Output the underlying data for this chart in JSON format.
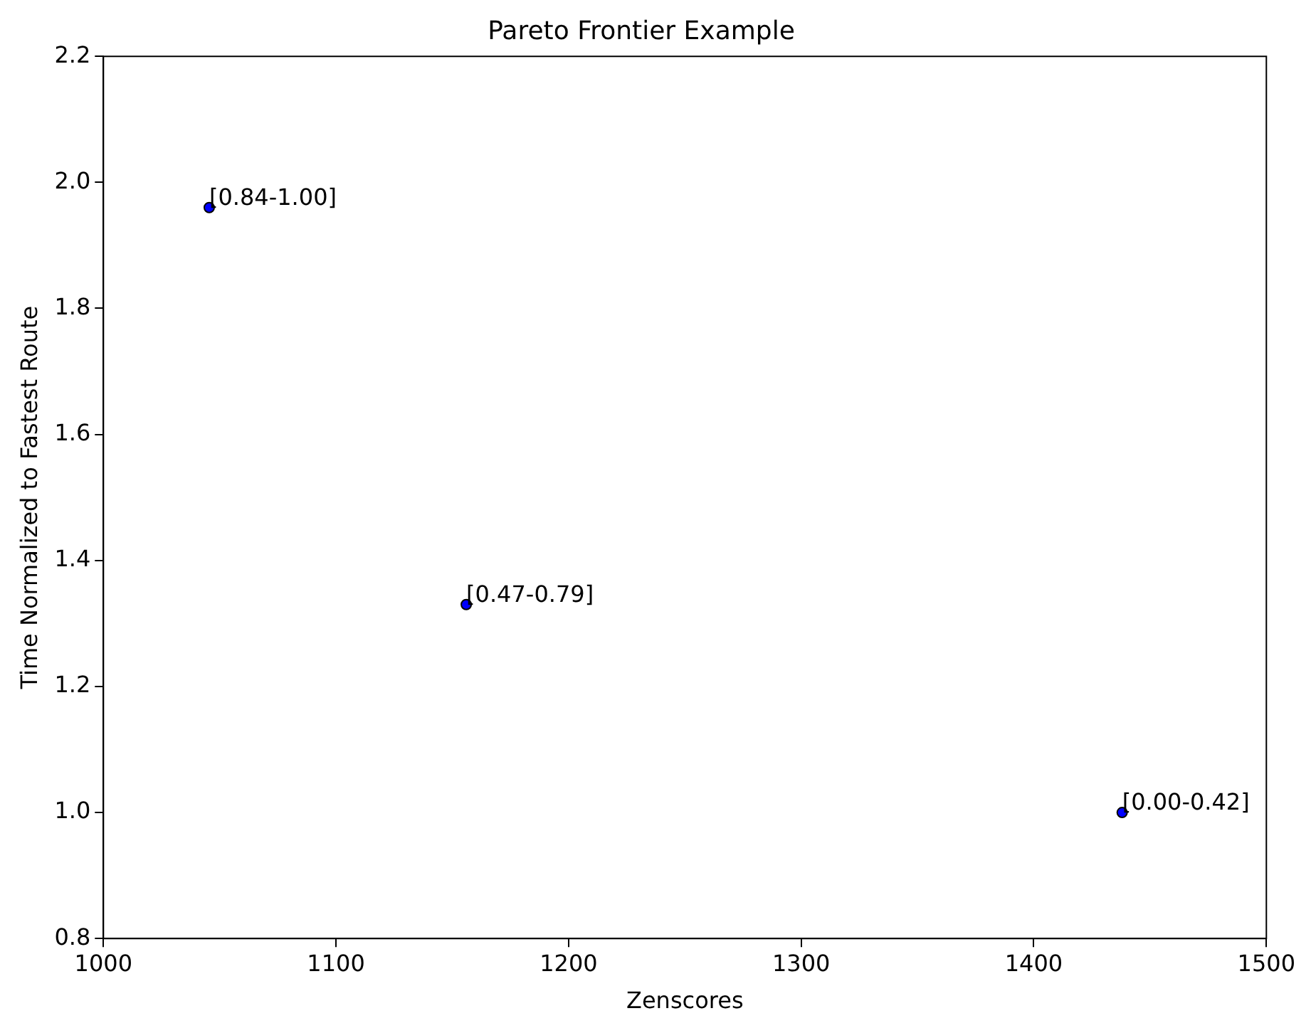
{
  "chart_data": {
    "type": "scatter",
    "title": "Pareto Frontier Example",
    "xlabel": "Zenscores",
    "ylabel": "Time Normalized to Fastest Route",
    "x": [
      1045.5,
      1156,
      1438
    ],
    "series": [
      {
        "color": "#0000ff",
        "values": [
          1.96,
          1.33,
          1.0
        ]
      }
    ],
    "annotations": [
      {
        "text": "[0.84-1.00]",
        "x": 1045.5,
        "y": 1.96
      },
      {
        "text": "[0.47-0.79]",
        "x": 1156,
        "y": 1.33
      },
      {
        "text": "[0.00-0.42]",
        "x": 1438,
        "y": 1.0
      }
    ],
    "xlim": [
      1000,
      1500
    ],
    "xticks": [
      1000,
      1100,
      1200,
      1300,
      1400,
      1500
    ],
    "ylim": [
      0.8,
      2.2
    ],
    "yticks": [
      0.8,
      {
        "value": 1,
        "label": "1.0"
      },
      1.2,
      1.4,
      1.6,
      1.8,
      {
        "value": 2,
        "label": "2.0"
      },
      2.2
    ],
    "marker": "circle",
    "grid": false,
    "legend": false
  }
}
